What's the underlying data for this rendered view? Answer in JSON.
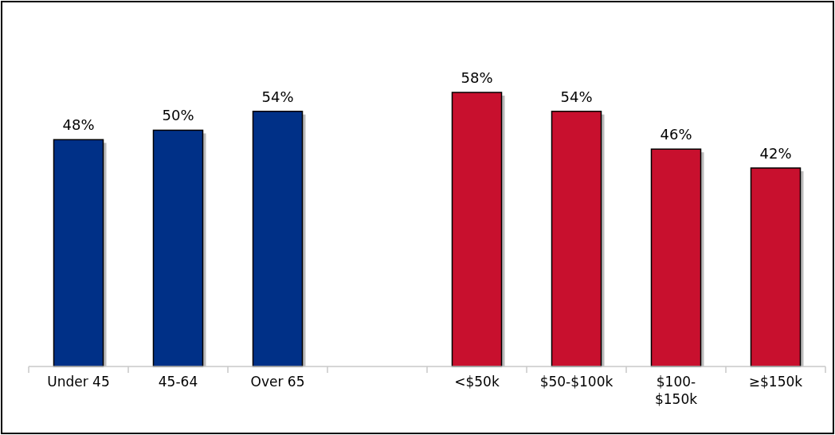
{
  "chart_data": {
    "type": "bar",
    "categories": [
      "Under 45",
      "45-64",
      "Over 65",
      null,
      "<$50k",
      "$50-$100k",
      "$100-$150k",
      "≥$150k"
    ],
    "values": [
      48,
      50,
      54,
      null,
      58,
      54,
      46,
      42
    ],
    "colors": [
      "#003087",
      "#003087",
      "#003087",
      null,
      "#c8102e",
      "#c8102e",
      "#c8102e",
      "#c8102e"
    ],
    "value_labels": [
      "48%",
      "50%",
      "54%",
      null,
      "58%",
      "54%",
      "46%",
      "42%"
    ]
  }
}
